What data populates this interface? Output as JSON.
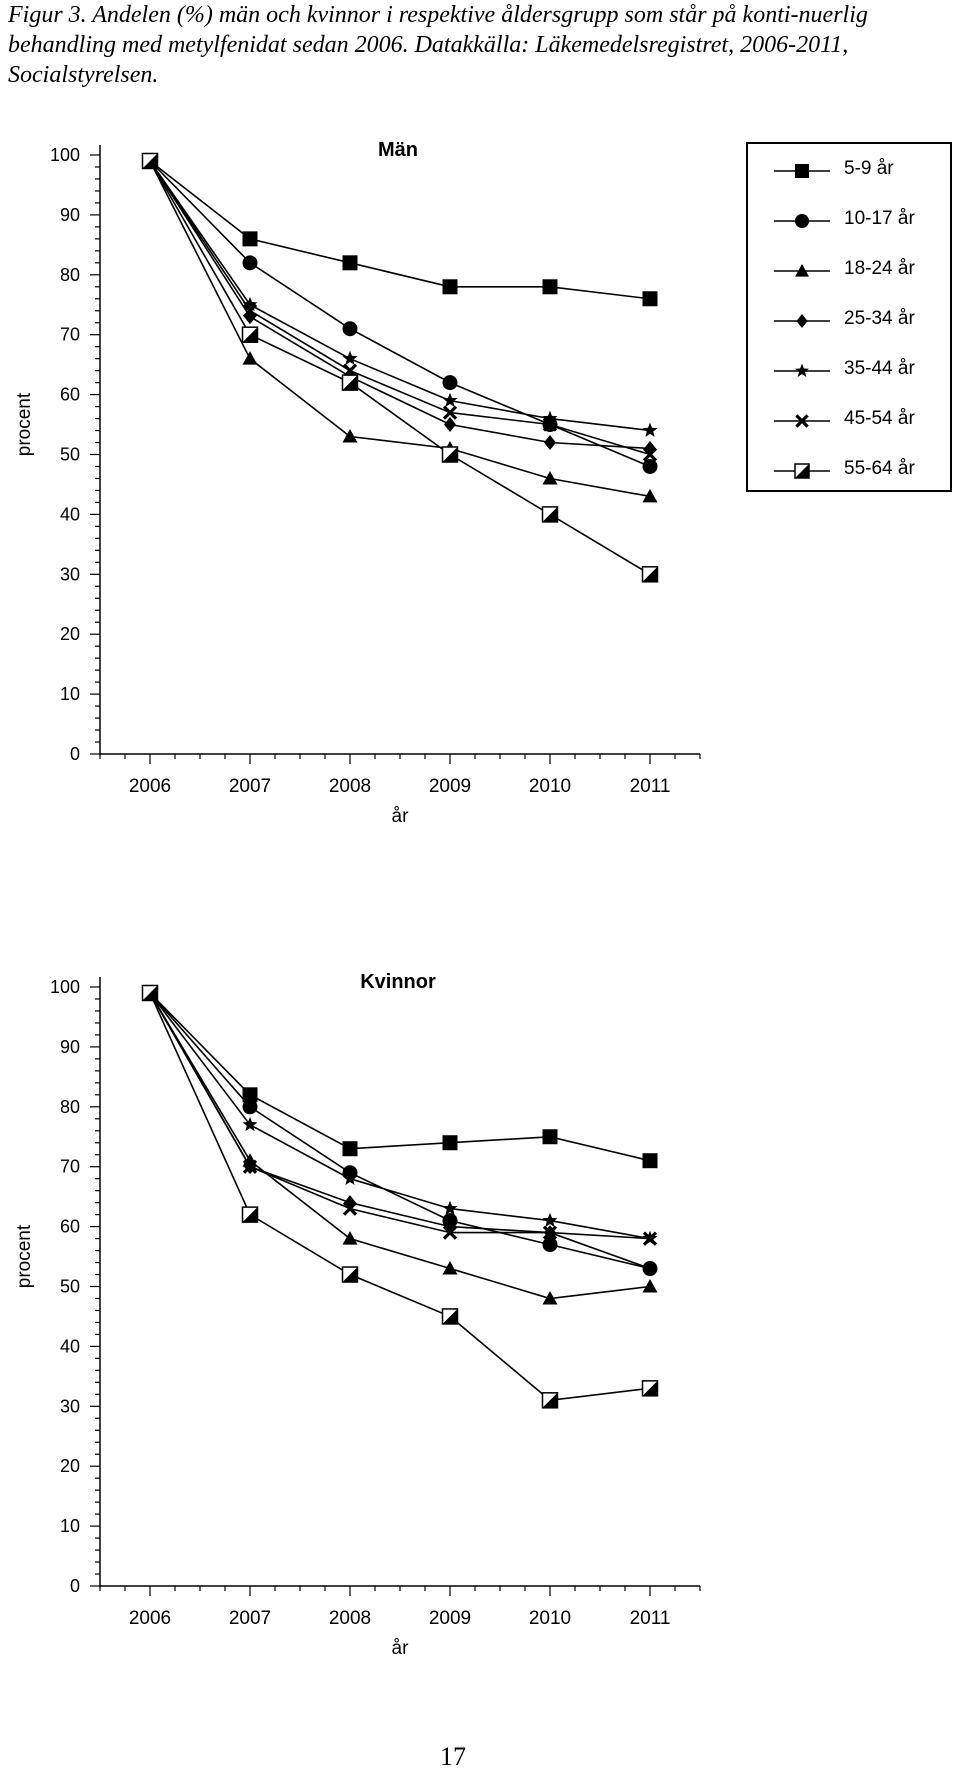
{
  "caption": "Figur 3. Andelen (%) män och kvinnor i respektive åldersgrupp som står på konti-nuerlig behandling med metylfenidat sedan 2006. Datakkälla: Läkemedelsregistret, 2006-2011, Socialstyrelsen.",
  "page_number": "17",
  "legend": {
    "items": [
      {
        "label": "5-9 år",
        "marker": "square-filled"
      },
      {
        "label": "10-17 år",
        "marker": "circle-filled"
      },
      {
        "label": "18-24 år",
        "marker": "triangle-filled"
      },
      {
        "label": "25-34 år",
        "marker": "diamond-filled"
      },
      {
        "label": "35-44 år",
        "marker": "star"
      },
      {
        "label": "45-54 år",
        "marker": "x-cross"
      },
      {
        "label": "55-64 år",
        "marker": "square-half"
      }
    ]
  },
  "chart_data": [
    {
      "type": "line",
      "title": "Män",
      "xlabel": "år",
      "ylabel": "procent",
      "x": [
        2006,
        2007,
        2008,
        2009,
        2010,
        2011
      ],
      "ylim": [
        0,
        100
      ],
      "yticks": [
        0,
        10,
        20,
        30,
        40,
        50,
        60,
        70,
        80,
        90,
        100
      ],
      "series": [
        {
          "name": "5-9 år",
          "values": [
            99,
            86,
            82,
            78,
            78,
            76
          ]
        },
        {
          "name": "10-17 år",
          "values": [
            99,
            82,
            71,
            62,
            55,
            48
          ]
        },
        {
          "name": "18-24 år",
          "values": [
            99,
            66,
            53,
            51,
            46,
            43
          ]
        },
        {
          "name": "25-34 år",
          "values": [
            99,
            73,
            63,
            55,
            52,
            51
          ]
        },
        {
          "name": "35-44 år",
          "values": [
            99,
            75,
            66,
            59,
            56,
            54
          ]
        },
        {
          "name": "45-54 år",
          "values": [
            99,
            74,
            64,
            57,
            55,
            50
          ]
        },
        {
          "name": "55-64 år",
          "values": [
            99,
            70,
            62,
            50,
            40,
            30
          ]
        }
      ]
    },
    {
      "type": "line",
      "title": "Kvinnor",
      "xlabel": "år",
      "ylabel": "procent",
      "x": [
        2006,
        2007,
        2008,
        2009,
        2010,
        2011
      ],
      "ylim": [
        0,
        100
      ],
      "yticks": [
        0,
        10,
        20,
        30,
        40,
        50,
        60,
        70,
        80,
        90,
        100
      ],
      "series": [
        {
          "name": "5-9 år",
          "values": [
            99,
            82,
            73,
            74,
            75,
            71
          ]
        },
        {
          "name": "10-17 år",
          "values": [
            99,
            80,
            69,
            61,
            57,
            53
          ]
        },
        {
          "name": "18-24 år",
          "values": [
            99,
            71,
            58,
            53,
            48,
            50
          ]
        },
        {
          "name": "25-34 år",
          "values": [
            99,
            70,
            64,
            60,
            59,
            53
          ]
        },
        {
          "name": "35-44 år",
          "values": [
            99,
            77,
            68,
            63,
            61,
            58
          ]
        },
        {
          "name": "45-54 år",
          "values": [
            99,
            70,
            63,
            59,
            59,
            58
          ]
        },
        {
          "name": "55-64 år",
          "values": [
            99,
            62,
            52,
            45,
            31,
            33
          ]
        }
      ]
    }
  ]
}
